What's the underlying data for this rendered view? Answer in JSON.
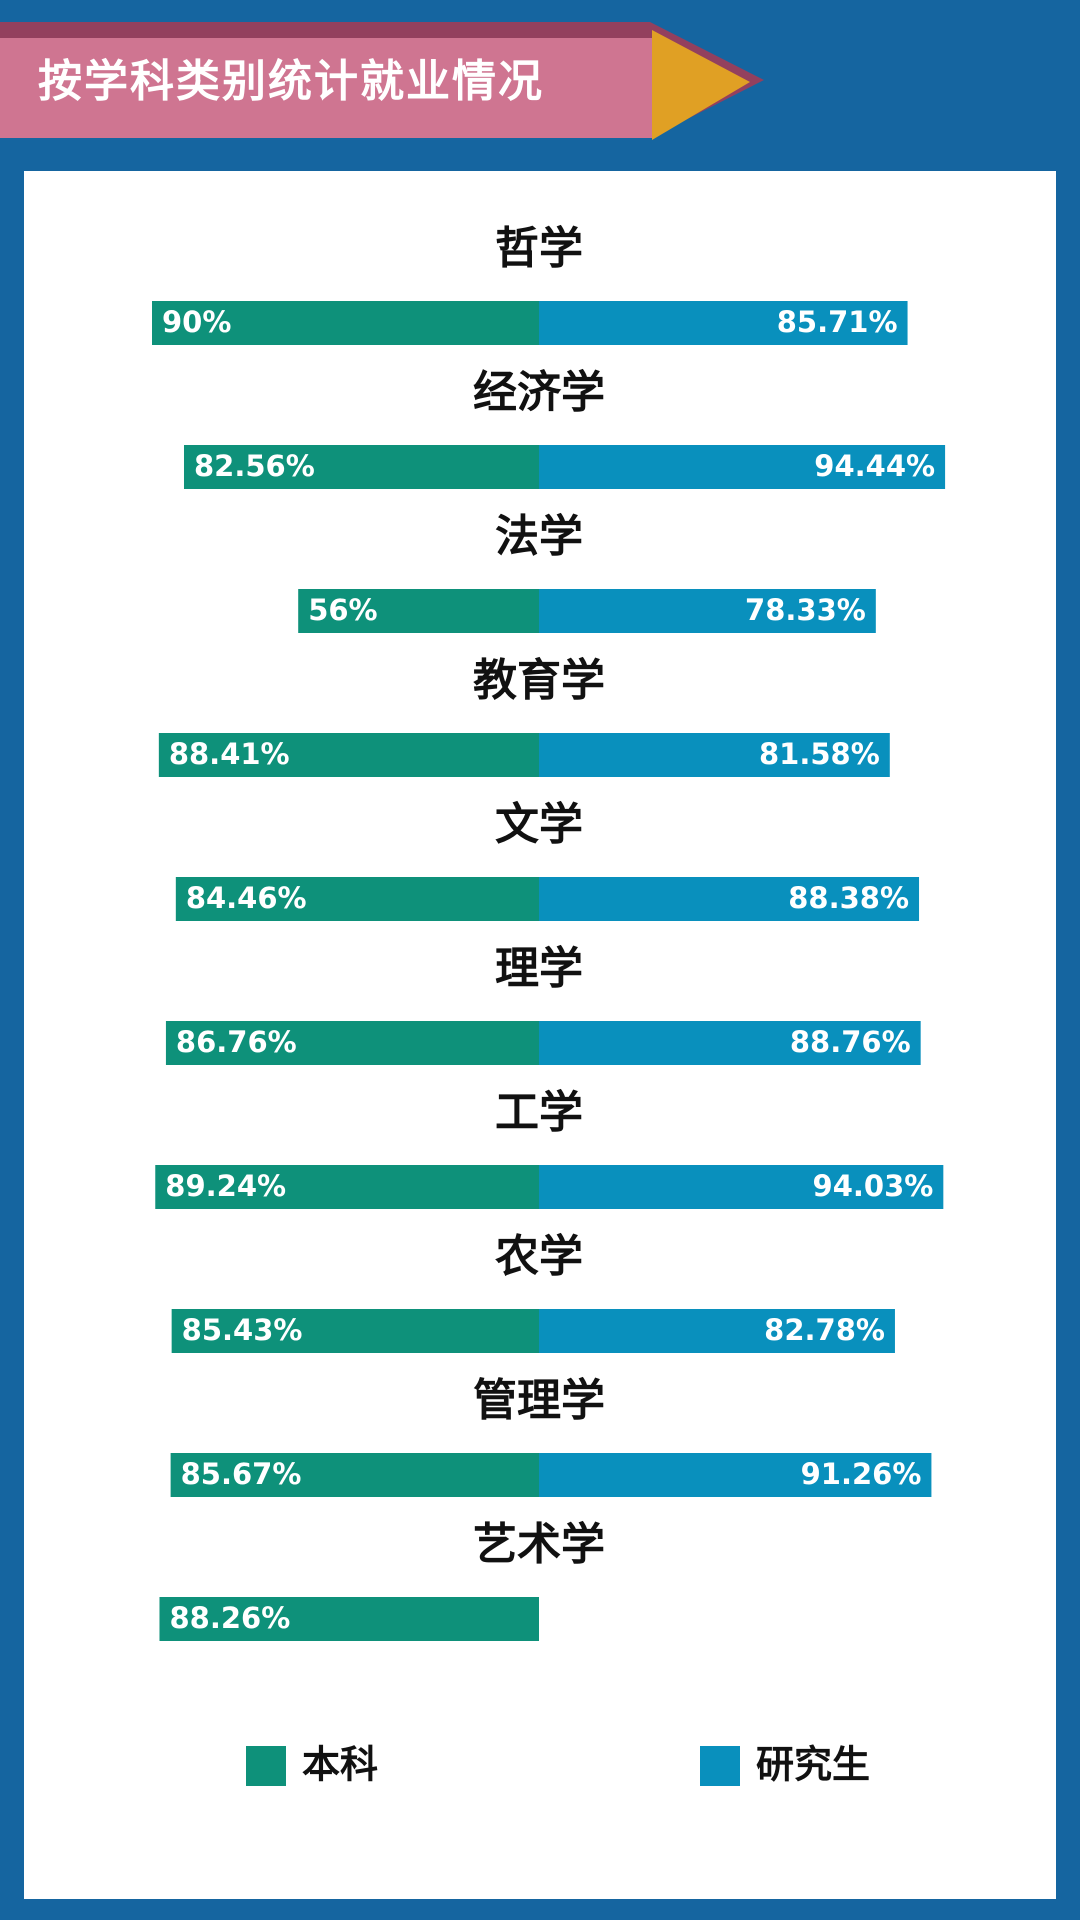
{
  "header": {
    "title": "按学科类别统计就业情况"
  },
  "colors": {
    "background": "#1565a0",
    "banner": "#cf7591",
    "banner_stripe": "#93405e",
    "arrow": "#e0a024",
    "undergrad": "#0e917a",
    "graduate": "#0990bd"
  },
  "chart_data": {
    "type": "bar",
    "orientation": "horizontal-diverging",
    "categories": [
      "哲学",
      "经济学",
      "法学",
      "教育学",
      "文学",
      "理学",
      "工学",
      "农学",
      "管理学",
      "艺术学"
    ],
    "series": [
      {
        "name": "本科",
        "values": [
          90,
          82.56,
          56,
          88.41,
          84.46,
          86.76,
          89.24,
          85.43,
          85.67,
          88.26
        ],
        "labels": [
          "90%",
          "82.56%",
          "56%",
          "88.41%",
          "84.46%",
          "86.76%",
          "89.24%",
          "85.43%",
          "85.67%",
          "88.26%"
        ]
      },
      {
        "name": "研究生",
        "values": [
          85.71,
          94.44,
          78.33,
          81.58,
          88.38,
          88.76,
          94.03,
          82.78,
          91.26,
          null
        ],
        "labels": [
          "85.71%",
          "94.44%",
          "78.33%",
          "81.58%",
          "88.38%",
          "88.76%",
          "94.03%",
          "82.78%",
          "91.26%",
          ""
        ]
      }
    ],
    "unit": "%",
    "legend_position": "bottom",
    "grid": false
  },
  "legend": {
    "items": [
      "本科",
      "研究生"
    ]
  }
}
